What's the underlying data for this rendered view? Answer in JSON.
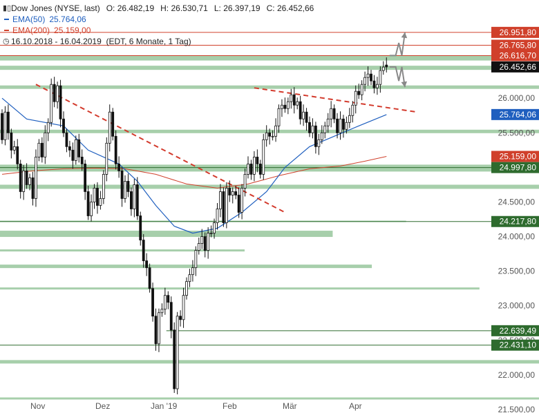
{
  "header": {
    "instrument": "Dow Jones (NYSE, last)",
    "open_label": "O:",
    "open": "26.482,19",
    "high_label": "H:",
    "high": "26.530,71",
    "low_label": "L:",
    "low": "26.397,19",
    "close_label": "C:",
    "close": "26.452,66",
    "ema50_label": "EMA(50)",
    "ema50_value": "25.764,06",
    "ema200_label": "EMA(200)",
    "ema200_value": "25.159,00",
    "range": "16.10.2018 - 16.04.2019",
    "settings": "(EDT, 6 Monate, 1 Tag)"
  },
  "colors": {
    "candle": "#111111",
    "ema50": "#1f5fbf",
    "ema200": "#d0402b",
    "zone": "#a7cfab",
    "trend": "#d33a2c",
    "arrow": "#888888",
    "badge_red": "#d0402b",
    "badge_black": "#111111",
    "badge_blue": "#1f5fbf",
    "badge_green": "#2e6b2e"
  },
  "chart_data": {
    "type": "candlestick",
    "x_labels": [
      "Nov",
      "Dez",
      "Jan '19",
      "Feb",
      "Mär",
      "Apr"
    ],
    "y_ticks": [
      21500,
      22000,
      22500,
      23000,
      23500,
      24000,
      24500,
      25000,
      25500,
      26000
    ],
    "y_tick_labels": [
      "21.500,00",
      "22.000,00",
      "22.500,00",
      "23.000,00",
      "23.500,00",
      "24.000,00",
      "24.500,00",
      "25.000,00",
      "25.500,00",
      "26.000,00"
    ],
    "ylim": [
      21450,
      27300
    ],
    "n_sessions": 126,
    "candles": [
      [
        25780,
        25400
      ],
      [
        25400,
        25800
      ],
      [
        25800,
        25500
      ],
      [
        25500,
        25250
      ],
      [
        25250,
        25300
      ],
      [
        25300,
        25050
      ],
      [
        25050,
        24650
      ],
      [
        24650,
        24950
      ],
      [
        24950,
        24750
      ],
      [
        24750,
        24850
      ],
      [
        24850,
        24550
      ],
      [
        24550,
        25150
      ],
      [
        25150,
        25350
      ],
      [
        25350,
        25150
      ],
      [
        25150,
        25500
      ],
      [
        25500,
        25650
      ],
      [
        25650,
        26200
      ],
      [
        26200,
        25950
      ],
      [
        25950,
        26180
      ],
      [
        26180,
        25700
      ],
      [
        25700,
        25500
      ],
      [
        25500,
        25300
      ],
      [
        25300,
        25250
      ],
      [
        25250,
        25100
      ],
      [
        25100,
        25400
      ],
      [
        25400,
        25150
      ],
      [
        25150,
        25050
      ],
      [
        25050,
        24650
      ],
      [
        24650,
        24300
      ],
      [
        24300,
        24500
      ],
      [
        24500,
        24700
      ],
      [
        24700,
        24450
      ],
      [
        24450,
        24550
      ],
      [
        24550,
        24900
      ],
      [
        24900,
        25350
      ],
      [
        25350,
        25800
      ],
      [
        25800,
        25450
      ],
      [
        25450,
        25050
      ],
      [
        25050,
        24950
      ],
      [
        24950,
        24550
      ],
      [
        24550,
        24800
      ],
      [
        24800,
        24650
      ],
      [
        24650,
        24400
      ],
      [
        24400,
        24750
      ],
      [
        24750,
        24300
      ],
      [
        24300,
        23950
      ],
      [
        23950,
        23650
      ],
      [
        23650,
        23550
      ],
      [
        23550,
        23250
      ],
      [
        23250,
        22850
      ],
      [
        22850,
        22450
      ],
      [
        22450,
        22900
      ],
      [
        22900,
        22950
      ],
      [
        22950,
        23150
      ],
      [
        23150,
        23050
      ],
      [
        23050,
        22650
      ],
      [
        22650,
        21800
      ],
      [
        21800,
        22850
      ],
      [
        22850,
        22800
      ],
      [
        22800,
        23150
      ],
      [
        23150,
        23350
      ],
      [
        23350,
        23450
      ],
      [
        23450,
        23550
      ],
      [
        23550,
        23800
      ],
      [
        23800,
        23900
      ],
      [
        23900,
        24000
      ],
      [
        24000,
        23800
      ],
      [
        23800,
        24050
      ],
      [
        24050,
        24050
      ],
      [
        24050,
        24200
      ],
      [
        24200,
        24400
      ],
      [
        24400,
        24650
      ],
      [
        24650,
        24200
      ],
      [
        24200,
        24700
      ],
      [
        24700,
        24600
      ],
      [
        24600,
        24650
      ],
      [
        24650,
        24600
      ],
      [
        24600,
        24350
      ],
      [
        24350,
        24700
      ],
      [
        24700,
        24900
      ],
      [
        24900,
        25050
      ],
      [
        25050,
        24900
      ],
      [
        24900,
        25150
      ],
      [
        25150,
        25050
      ],
      [
        25050,
        24900
      ],
      [
        24900,
        25400
      ],
      [
        25400,
        25500
      ],
      [
        25500,
        25450
      ],
      [
        25450,
        25450
      ],
      [
        25450,
        25600
      ],
      [
        25600,
        25850
      ],
      [
        25850,
        25900
      ],
      [
        25900,
        25850
      ],
      [
        25850,
        25950
      ],
      [
        25950,
        26050
      ],
      [
        26050,
        25900
      ],
      [
        25900,
        25950
      ],
      [
        25950,
        25700
      ],
      [
        25700,
        25800
      ],
      [
        25800,
        25650
      ],
      [
        25650,
        25500
      ],
      [
        25500,
        25600
      ],
      [
        25600,
        25300
      ],
      [
        25300,
        25400
      ],
      [
        25400,
        25500
      ],
      [
        25500,
        25600
      ],
      [
        25600,
        25700
      ],
      [
        25700,
        25850
      ],
      [
        25850,
        25700
      ],
      [
        25700,
        25500
      ],
      [
        25500,
        25700
      ],
      [
        25700,
        25550
      ],
      [
        25550,
        25650
      ],
      [
        25650,
        25750
      ],
      [
        25750,
        25900
      ],
      [
        25900,
        26100
      ],
      [
        26100,
        26050
      ],
      [
        26050,
        26200
      ],
      [
        26200,
        26300
      ],
      [
        26300,
        26350
      ],
      [
        26350,
        26250
      ],
      [
        26250,
        26150
      ],
      [
        26150,
        26200
      ],
      [
        26200,
        26400
      ],
      [
        26400,
        26450
      ],
      [
        26480,
        26452
      ]
    ],
    "ema50": [
      [
        0,
        26000
      ],
      [
        8,
        25700
      ],
      [
        20,
        25600
      ],
      [
        28,
        25250
      ],
      [
        38,
        25050
      ],
      [
        44,
        24800
      ],
      [
        50,
        24450
      ],
      [
        56,
        24150
      ],
      [
        62,
        24050
      ],
      [
        70,
        24120
      ],
      [
        78,
        24350
      ],
      [
        86,
        24650
      ],
      [
        92,
        25000
      ],
      [
        100,
        25300
      ],
      [
        108,
        25450
      ],
      [
        116,
        25600
      ],
      [
        125,
        25764
      ]
    ],
    "ema200": [
      [
        0,
        24900
      ],
      [
        10,
        24950
      ],
      [
        20,
        24980
      ],
      [
        30,
        24990
      ],
      [
        40,
        24980
      ],
      [
        50,
        24900
      ],
      [
        60,
        24760
      ],
      [
        70,
        24700
      ],
      [
        80,
        24760
      ],
      [
        90,
        24880
      ],
      [
        100,
        24980
      ],
      [
        110,
        25020
      ],
      [
        118,
        25090
      ],
      [
        125,
        25159
      ]
    ],
    "support_zones": [
      {
        "price": 26580,
        "x_start": 0.0,
        "x_end": 1.0,
        "h": 7
      },
      {
        "price": 26440,
        "x_start": 0.0,
        "x_end": 1.0,
        "h": 6
      },
      {
        "price": 26160,
        "x_start": 0.0,
        "x_end": 1.0,
        "h": 5
      },
      {
        "price": 25520,
        "x_start": 0.0,
        "x_end": 1.0,
        "h": 5
      },
      {
        "price": 24990,
        "x_start": 0.0,
        "x_end": 1.0,
        "h": 10
      },
      {
        "price": 24720,
        "x_start": 0.0,
        "x_end": 1.0,
        "h": 6
      },
      {
        "price": 24220,
        "x_start": 0.0,
        "x_end": 0.83,
        "h": 2
      },
      {
        "price": 24040,
        "x_start": 0.0,
        "x_end": 0.68,
        "h": 9
      },
      {
        "price": 23800,
        "x_start": 0.0,
        "x_end": 0.5,
        "h": 3
      },
      {
        "price": 23570,
        "x_start": 0.0,
        "x_end": 0.76,
        "h": 5
      },
      {
        "price": 23250,
        "x_start": 0.0,
        "x_end": 0.98,
        "h": 3
      },
      {
        "price": 22190,
        "x_start": 0.0,
        "x_end": 1.0,
        "h": 5
      },
      {
        "price": 21660,
        "x_start": 0.0,
        "x_end": 1.0,
        "h": 3
      }
    ],
    "hlines": [
      {
        "price": 26951.8,
        "color": "#d0402b",
        "x_start": 0.0
      },
      {
        "price": 26765.8,
        "color": "#d0402b",
        "x_start": 0.0
      },
      {
        "price": 26616.7,
        "color": "#d0402b",
        "x_start": 0.0
      },
      {
        "price": 24997.8,
        "color": "#2e6b2e",
        "x_start": 0.0
      },
      {
        "price": 24217.8,
        "color": "#2e6b2e",
        "x_start": 0.0
      },
      {
        "price": 22639.49,
        "color": "#2e6b2e",
        "x_start": 0.34
      },
      {
        "price": 22431.1,
        "color": "#2e6b2e",
        "x_start": 0.0
      }
    ],
    "trendlines": [
      {
        "from": [
          11,
          26200
        ],
        "to": [
          92,
          24350
        ]
      },
      {
        "from": [
          82,
          26150
        ],
        "to": [
          135,
          25800
        ]
      }
    ],
    "badges": [
      {
        "price": 26951.8,
        "label": "26.951,80",
        "color": "#d0402b"
      },
      {
        "price": 26765.8,
        "label": "26.765,80",
        "color": "#d0402b"
      },
      {
        "price": 26616.7,
        "label": "26.616,70",
        "color": "#d0402b"
      },
      {
        "price": 26452.66,
        "label": "26.452,66",
        "color": "#111111"
      },
      {
        "price": 25764.06,
        "label": "25.764,06",
        "color": "#1f5fbf"
      },
      {
        "price": 25159.0,
        "label": "25.159,00",
        "color": "#d0402b"
      },
      {
        "price": 24997.8,
        "label": "24.997,80",
        "color": "#2e6b2e"
      },
      {
        "price": 24217.8,
        "label": "24.217,80",
        "color": "#2e6b2e"
      },
      {
        "price": 22639.49,
        "label": "22.639,49",
        "color": "#2e6b2e"
      },
      {
        "price": 22431.1,
        "label": "22.431,10",
        "color": "#2e6b2e"
      }
    ],
    "arrows": [
      {
        "points": [
          [
            126,
            26616.7
          ],
          [
            128,
            26616.7
          ],
          [
            129,
            26800
          ],
          [
            130,
            26616.7
          ]
        ],
        "tip": [
          131,
          26951.8
        ]
      },
      {
        "points": [
          [
            126,
            26452.66
          ],
          [
            128,
            26452.66
          ],
          [
            129,
            26250
          ],
          [
            130,
            26452.66
          ]
        ],
        "tip": [
          131,
          26160
        ]
      }
    ]
  }
}
